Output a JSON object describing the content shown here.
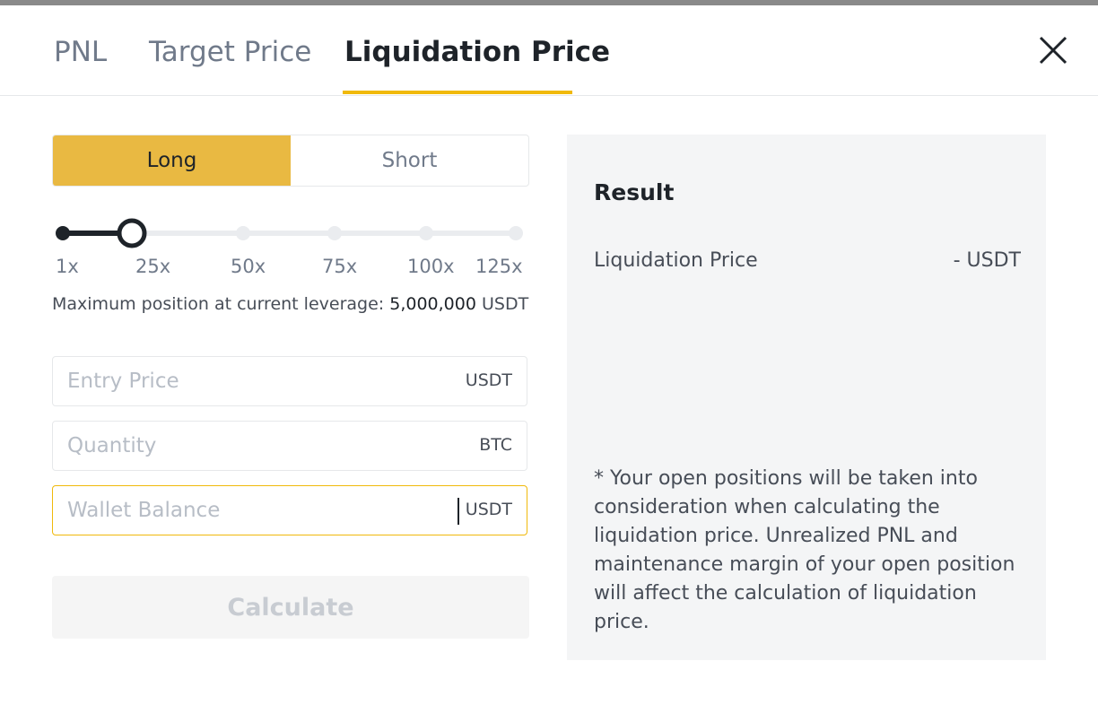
{
  "tabs": [
    "PNL",
    "Target Price",
    "Liquidation Price"
  ],
  "side": [
    "Long",
    "Short"
  ],
  "leverage_marks": [
    "1x",
    "25x",
    "50x",
    "75x",
    "100x",
    "125x"
  ],
  "max_position": {
    "label": "Maximum position at current leverage:",
    "value": "5,000,000",
    "unit": "USDT"
  },
  "inputs": [
    {
      "placeholder": "Entry Price",
      "unit": "USDT"
    },
    {
      "placeholder": "Quantity",
      "unit": "BTC"
    },
    {
      "placeholder": "Wallet Balance",
      "unit": "USDT"
    }
  ],
  "button": "Calculate",
  "result": {
    "title": "Result",
    "label": "Liquidation Price",
    "value": "- USDT",
    "note": "* Your open positions will be taken into consideration when calculating the liquidation price. Unrealized PNL and maintenance margin of your open position will affect the calculation of liquidation price."
  }
}
